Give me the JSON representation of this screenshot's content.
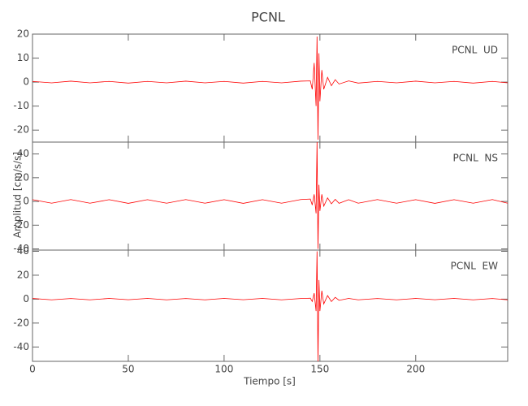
{
  "chart_data": [
    {
      "type": "line",
      "title": "PCNL",
      "label": "PCNL  UD",
      "x": [
        0,
        10,
        20,
        30,
        40,
        50,
        60,
        70,
        80,
        90,
        100,
        110,
        120,
        130,
        140,
        145,
        146,
        147,
        148,
        148.5,
        149,
        149.5,
        150,
        151,
        152,
        154,
        156,
        158,
        160,
        165,
        170,
        180,
        190,
        200,
        210,
        220,
        230,
        240,
        248
      ],
      "values": [
        0.3,
        -0.3,
        0.4,
        -0.3,
        0.3,
        -0.4,
        0.3,
        -0.3,
        0.4,
        -0.3,
        0.3,
        -0.4,
        0.3,
        -0.3,
        0.4,
        0.5,
        -3,
        8,
        -10,
        19,
        -24,
        12,
        -8,
        5,
        -3,
        2,
        -1.5,
        1,
        -0.8,
        0.5,
        -0.4,
        0.3,
        -0.3,
        0.4,
        -0.3,
        0.3,
        -0.4,
        0.3,
        -0.3
      ],
      "color": "#ff0000",
      "xlim": [
        0,
        248
      ],
      "ylim": [
        -25,
        20
      ],
      "yticks": [
        -20,
        -10,
        0,
        10,
        20
      ]
    },
    {
      "type": "line",
      "label": "PCNL  NS",
      "ylabel": "Amplitud [cm/s/s]",
      "x": [
        0,
        10,
        20,
        30,
        40,
        50,
        60,
        70,
        80,
        90,
        100,
        110,
        120,
        130,
        140,
        145,
        146,
        147,
        148,
        148.5,
        149,
        149.5,
        150,
        151,
        152,
        154,
        156,
        158,
        160,
        165,
        170,
        180,
        190,
        200,
        210,
        220,
        230,
        240,
        248
      ],
      "values": [
        1.5,
        -1.5,
        1.6,
        -1.5,
        1.5,
        -1.6,
        1.5,
        -1.5,
        1.6,
        -1.5,
        1.5,
        -1.6,
        1.5,
        -1.5,
        1.6,
        2,
        -3,
        6,
        -10,
        50,
        -40,
        14,
        -8,
        6,
        -4,
        3,
        -2,
        1.8,
        -1.6,
        1.5,
        -1.5,
        1.6,
        -1.5,
        1.5,
        -1.6,
        1.5,
        -1.5,
        1.6,
        -1.5
      ],
      "color": "#ff0000",
      "xlim": [
        0,
        248
      ],
      "ylim": [
        -41,
        50
      ],
      "yticks": [
        -40,
        -20,
        0,
        20,
        40
      ]
    },
    {
      "type": "line",
      "label": "PCNL  EW",
      "xlabel": "Tiempo [s]",
      "x": [
        0,
        10,
        20,
        30,
        40,
        50,
        60,
        70,
        80,
        90,
        100,
        110,
        120,
        130,
        140,
        145,
        146,
        147,
        148,
        148.5,
        149,
        149.5,
        150,
        151,
        152,
        154,
        156,
        158,
        160,
        165,
        170,
        180,
        190,
        200,
        210,
        220,
        230,
        240,
        248
      ],
      "values": [
        0.6,
        -0.6,
        0.5,
        -0.6,
        0.6,
        -0.5,
        0.6,
        -0.6,
        0.5,
        -0.6,
        0.6,
        -0.5,
        0.6,
        -0.6,
        0.5,
        0.8,
        -2,
        5,
        -10,
        40,
        -52,
        16,
        -10,
        7,
        -4,
        3,
        -2,
        1.5,
        -1,
        0.6,
        -0.6,
        0.5,
        -0.6,
        0.6,
        -0.5,
        0.6,
        -0.6,
        0.5,
        -0.6
      ],
      "color": "#ff0000",
      "xlim": [
        0,
        248
      ],
      "ylim": [
        -52,
        41
      ],
      "yticks": [
        -40,
        -20,
        0,
        20,
        40
      ],
      "xticks": [
        0,
        50,
        100,
        150,
        200
      ]
    }
  ]
}
